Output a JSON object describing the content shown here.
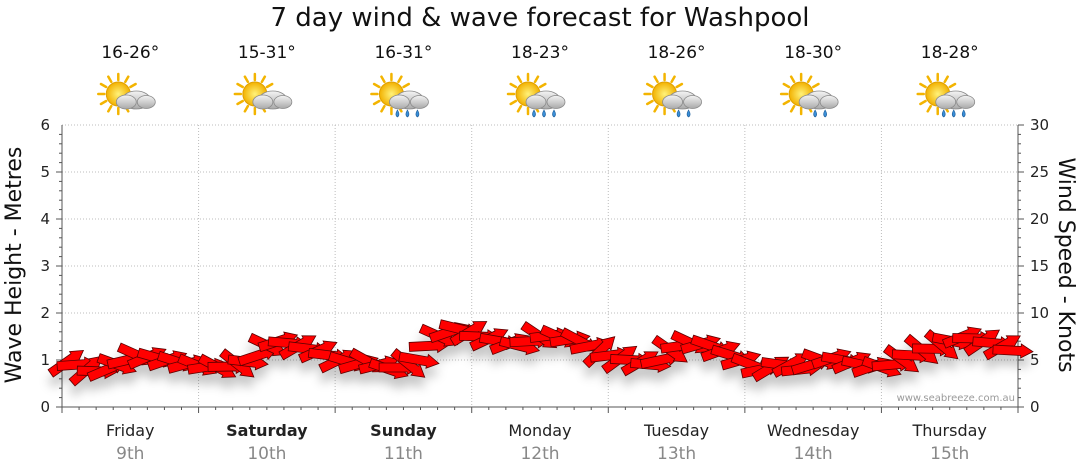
{
  "chart_data": {
    "type": "line",
    "title": "7 day wind & wave forecast for Washpool",
    "ylabel": "Wave Height - Metres",
    "y2label": "Wind Speed - Knots",
    "ylim": [
      0,
      6
    ],
    "y2lim": [
      0,
      30
    ],
    "yticks": [
      "0",
      "1",
      "2",
      "3",
      "4",
      "5",
      "6"
    ],
    "y2ticks": [
      "0",
      "5",
      "10",
      "15",
      "20",
      "25",
      "30"
    ],
    "grid": true,
    "credit": "www.seabreeze.com.au",
    "days": [
      {
        "day": "Friday",
        "date": "9th",
        "temp": "16-26°",
        "weather": "partly-cloudy",
        "bold": false
      },
      {
        "day": "Saturday",
        "date": "10th",
        "temp": "15-31°",
        "weather": "partly-cloudy",
        "bold": true
      },
      {
        "day": "Sunday",
        "date": "11th",
        "temp": "16-31°",
        "weather": "showers",
        "bold": true
      },
      {
        "day": "Monday",
        "date": "12th",
        "temp": "18-23°",
        "weather": "showers",
        "bold": false
      },
      {
        "day": "Tuesday",
        "date": "13th",
        "temp": "18-26°",
        "weather": "partly-cloudy-showers",
        "bold": false
      },
      {
        "day": "Wednesday",
        "date": "14th",
        "temp": "18-30°",
        "weather": "partly-cloudy-showers",
        "bold": false
      },
      {
        "day": "Thursday",
        "date": "15th",
        "temp": "18-28°",
        "weather": "showers",
        "bold": false
      }
    ],
    "series": [
      {
        "name": "Wind",
        "color": "#ff0000",
        "values": [
          4.8,
          4.5,
          4.0,
          3.8,
          4.0,
          4.5,
          5.0,
          5.5,
          5.3,
          5.2,
          5.0,
          4.8,
          4.6,
          4.4,
          4.3,
          4.2,
          4.3,
          4.5,
          4.8,
          5.5,
          6.5,
          7.0,
          6.8,
          6.5,
          6.2,
          6.0,
          5.5,
          5.0,
          4.8,
          4.6,
          4.8,
          4.5,
          4.0,
          4.2,
          4.5,
          5.0,
          6.5,
          7.5,
          8.0,
          8.3,
          8.0,
          7.5,
          7.3,
          7.0,
          6.8,
          6.5,
          7.0,
          7.5,
          7.6,
          7.4,
          7.2,
          7.0,
          6.5,
          6.0,
          5.5,
          5.2,
          5.0,
          4.8,
          4.5,
          5.0,
          6.0,
          6.5,
          6.8,
          6.7,
          6.5,
          6.0,
          5.5,
          5.0,
          4.5,
          4.0,
          4.2,
          4.5,
          4.6,
          4.0,
          4.5,
          5.0,
          5.2,
          5.0,
          4.8,
          4.5,
          4.3,
          4.2,
          4.5,
          5.0,
          5.5,
          6.0,
          6.2,
          6.5,
          7.0,
          7.5,
          7.3,
          7.0,
          6.8,
          6.5,
          6.0
        ]
      }
    ]
  }
}
